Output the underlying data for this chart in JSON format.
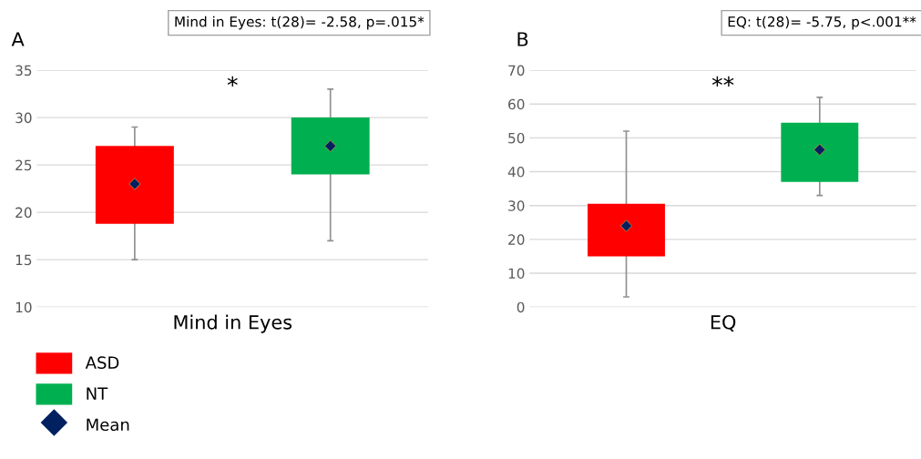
{
  "chart_data": [
    {
      "type": "bar",
      "title": "A",
      "categories": [
        "Mind in Eyes"
      ],
      "series": [
        {
          "name": "ASD",
          "color": "#ff0000",
          "values": [
            8.2
          ],
          "base": [
            18.8
          ],
          "errors": [
            [
              15,
              29
            ]
          ]
        },
        {
          "name": "NT",
          "color": "#00b050",
          "values": [
            6
          ],
          "base": [
            24
          ],
          "errors": [
            [
              17,
              33
            ]
          ]
        },
        {
          "name": "Mean",
          "type": "scatter",
          "color": "#002060",
          "x": [
            "Mind in Eyes",
            "Mind in Eyes"
          ],
          "values": [
            23,
            27
          ]
        }
      ],
      "ylim": [
        10,
        35
      ],
      "yticks": [
        10,
        15,
        20,
        25,
        30,
        35
      ],
      "grid": "y",
      "legend": "bottom left",
      "marker": "diamond",
      "annotations": [
        "Mind in Eyes: t(28)= -2.58, p=.015*",
        "*"
      ]
    },
    {
      "type": "bar",
      "title": "B",
      "categories": [
        "EQ"
      ],
      "series": [
        {
          "color": "#ff0000",
          "values": [
            15.5
          ],
          "base": [
            15
          ],
          "errors": [
            [
              3,
              52
            ]
          ]
        },
        {
          "color": "#00b050",
          "values": [
            17.5
          ],
          "base": [
            37
          ],
          "errors": [
            [
              33,
              62
            ]
          ]
        },
        {
          "type": "scatter",
          "color": "#002060",
          "x": [
            "EQ",
            "EQ"
          ],
          "values": [
            24,
            46.5
          ]
        }
      ],
      "ylim": [
        0,
        70
      ],
      "yticks": [
        0,
        10,
        20,
        30,
        40,
        50,
        60,
        70
      ],
      "grid": "y",
      "marker": "diamond",
      "annotations": [
        "EQ: t(28)= -5.75, p<.001**",
        "**"
      ]
    }
  ]
}
